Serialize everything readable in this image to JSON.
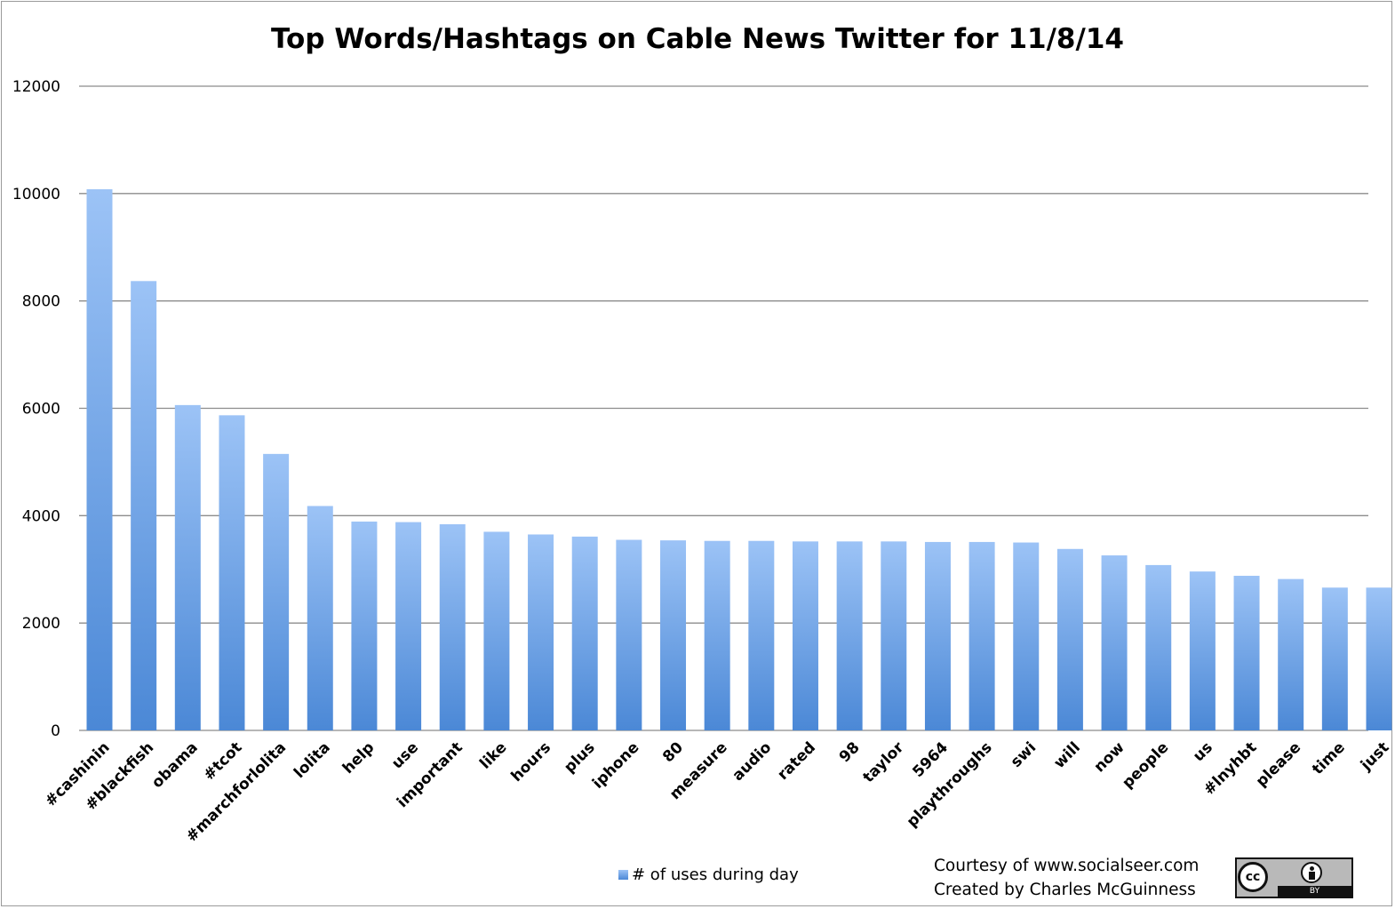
{
  "chart_data": {
    "type": "bar",
    "title": "Top Words/Hashtags on Cable News Twitter for 11/8/14",
    "xlabel": "",
    "ylabel": "",
    "ylim": [
      0,
      12000
    ],
    "yticks": [
      0,
      2000,
      4000,
      6000,
      8000,
      10000,
      12000
    ],
    "grid": true,
    "legend_position": "bottom",
    "categories": [
      "#cashinin",
      "#blackfish",
      "obama",
      "#tcot",
      "#marchforlolita",
      "lolita",
      "help",
      "use",
      "important",
      "like",
      "hours",
      "plus",
      "iphone",
      "80",
      "measure",
      "audio",
      "rated",
      "98",
      "taylor",
      "5964",
      "playthroughs",
      "swi",
      "will",
      "now",
      "people",
      "us",
      "#lnyhbt",
      "please",
      "time",
      "just"
    ],
    "series": [
      {
        "name": "# of uses during day",
        "values": [
          10080,
          8370,
          6060,
          5870,
          5150,
          4180,
          3890,
          3880,
          3840,
          3700,
          3650,
          3610,
          3550,
          3540,
          3530,
          3530,
          3520,
          3520,
          3520,
          3510,
          3510,
          3500,
          3380,
          3260,
          3080,
          2960,
          2880,
          2820,
          2660,
          2660
        ]
      }
    ],
    "colors": {
      "bar_top": "#9cc3f6",
      "bar_bottom": "#4b88d6",
      "grid": "#8c8c8c"
    }
  },
  "legend": {
    "label": "# of uses during day"
  },
  "credits": {
    "line1": "Courtesy of www.socialseer.com",
    "line2": "Created by Charles McGuinness"
  },
  "license_badge": {
    "text": "cc",
    "strip": "BY"
  }
}
